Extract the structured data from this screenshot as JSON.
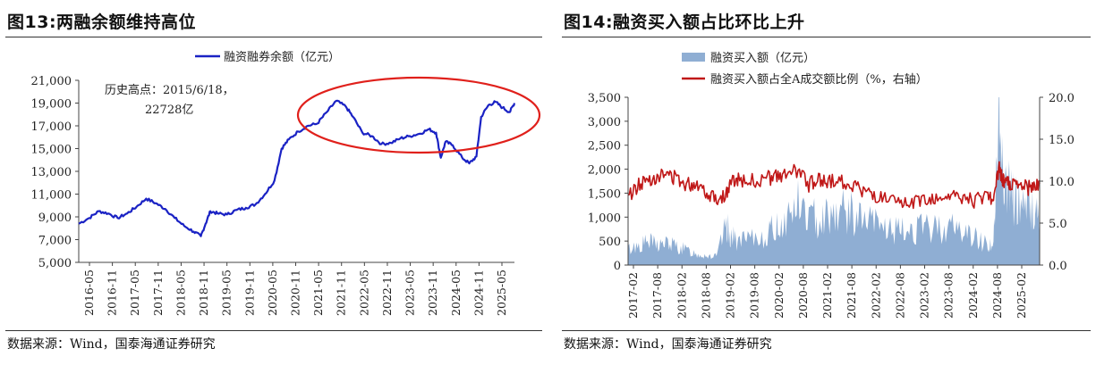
{
  "source_text": "数据来源：Wind，国泰海通证券研究",
  "chart_data": [
    {
      "type": "line",
      "figure_title": "图13:两融余额维持高位",
      "legend": [
        "融资融券余额（亿元）"
      ],
      "annotation": [
        "历史高点：2015/6/18，",
        "22728亿"
      ],
      "series_color": "#1a22c4",
      "highlight_color": "#e0201b",
      "yticks": [
        "21,000",
        "19,000",
        "17,000",
        "15,000",
        "13,000",
        "11,000",
        "9,000",
        "7,000",
        "5,000"
      ],
      "ylim": [
        5000,
        21000
      ],
      "xticks": [
        "2016-05",
        "2016-11",
        "2017-05",
        "2017-11",
        "2018-05",
        "2018-11",
        "2019-05",
        "2019-11",
        "2020-05",
        "2020-11",
        "2021-05",
        "2021-11",
        "2022-05",
        "2022-11",
        "2023-05",
        "2023-11",
        "2024-05",
        "2024-11",
        "2025-05"
      ],
      "xlim": [
        2016.33,
        2025.5
      ],
      "x": [
        2016.33,
        2016.55,
        2016.75,
        2016.95,
        2017.15,
        2017.35,
        2017.55,
        2017.75,
        2017.95,
        2018.15,
        2018.35,
        2018.55,
        2018.75,
        2018.9,
        2019.0,
        2019.1,
        2019.25,
        2019.45,
        2019.65,
        2019.85,
        2020.05,
        2020.25,
        2020.45,
        2020.6,
        2020.75,
        2020.95,
        2021.15,
        2021.35,
        2021.55,
        2021.75,
        2021.95,
        2022.1,
        2022.3,
        2022.5,
        2022.7,
        2022.9,
        2023.1,
        2023.3,
        2023.5,
        2023.7,
        2023.85,
        2023.95,
        2024.05,
        2024.2,
        2024.4,
        2024.55,
        2024.7,
        2024.8,
        2024.95,
        2025.1,
        2025.25,
        2025.4,
        2025.5
      ],
      "y": [
        8400,
        8900,
        9500,
        9300,
        8900,
        9300,
        9900,
        10600,
        10200,
        9700,
        8900,
        8200,
        7700,
        7300,
        8400,
        9500,
        9300,
        9200,
        9600,
        9800,
        10100,
        11000,
        12200,
        15000,
        15800,
        16500,
        17000,
        17200,
        18200,
        19200,
        18700,
        17800,
        16400,
        16100,
        15400,
        15500,
        15900,
        16100,
        16300,
        16700,
        16400,
        14200,
        15600,
        15300,
        14200,
        13700,
        14300,
        17800,
        18800,
        19100,
        18600,
        18200,
        19000
      ]
    },
    {
      "type": "area+line",
      "figure_title": "图14:融资买入额占比环比上升",
      "legend": [
        "融资买入额（亿元）",
        "融资买入额占全A成交额比例（%，右轴）"
      ],
      "area_color": "#8faed3",
      "line_color": "#c01818",
      "yticks_left": [
        "3,500",
        "3,000",
        "2,500",
        "2,000",
        "1,500",
        "1,000",
        "500",
        "0"
      ],
      "ylim_left": [
        0,
        3500
      ],
      "yticks_right": [
        "20.0",
        "15.0",
        "10.0",
        "5.0",
        "0.0"
      ],
      "ylim_right": [
        0,
        20
      ],
      "xticks": [
        "2017-02",
        "2017-08",
        "2018-02",
        "2018-08",
        "2019-02",
        "2019-08",
        "2020-02",
        "2020-08",
        "2021-02",
        "2021-08",
        "2022-02",
        "2022-08",
        "2023-02",
        "2023-08",
        "2024-02",
        "2024-08",
        "2025-02"
      ],
      "xlim": [
        2017.08,
        2025.55
      ],
      "x": [
        2017.08,
        2017.3,
        2017.5,
        2017.7,
        2017.9,
        2018.1,
        2018.3,
        2018.5,
        2018.7,
        2018.9,
        2019.1,
        2019.2,
        2019.35,
        2019.6,
        2019.9,
        2020.1,
        2020.3,
        2020.55,
        2020.8,
        2021.0,
        2021.2,
        2021.45,
        2021.7,
        2021.95,
        2022.2,
        2022.45,
        2022.7,
        2022.95,
        2023.2,
        2023.45,
        2023.7,
        2023.95,
        2024.2,
        2024.45,
        2024.6,
        2024.72,
        2024.78,
        2024.85,
        2024.95,
        2025.1,
        2025.3,
        2025.45,
        2025.55
      ],
      "area": [
        320,
        420,
        480,
        430,
        450,
        380,
        300,
        230,
        200,
        170,
        820,
        600,
        480,
        520,
        600,
        780,
        900,
        1300,
        1000,
        980,
        1080,
        1150,
        1050,
        900,
        860,
        750,
        680,
        760,
        740,
        780,
        800,
        720,
        580,
        460,
        400,
        3200,
        2200,
        1700,
        1500,
        1300,
        1350,
        1050,
        1200
      ],
      "ratio": [
        8.2,
        9.5,
        10.3,
        10.6,
        10.8,
        10.3,
        9.6,
        9.8,
        8.7,
        8.0,
        8.4,
        9.8,
        10.3,
        10.0,
        10.3,
        10.5,
        10.6,
        11.3,
        9.6,
        10.2,
        9.9,
        10.1,
        9.5,
        8.8,
        8.1,
        7.6,
        7.1,
        7.5,
        7.8,
        8.0,
        8.2,
        7.9,
        7.7,
        8.3,
        7.9,
        11.5,
        10.3,
        9.8,
        9.6,
        9.4,
        9.2,
        9.3,
        9.7
      ]
    }
  ]
}
